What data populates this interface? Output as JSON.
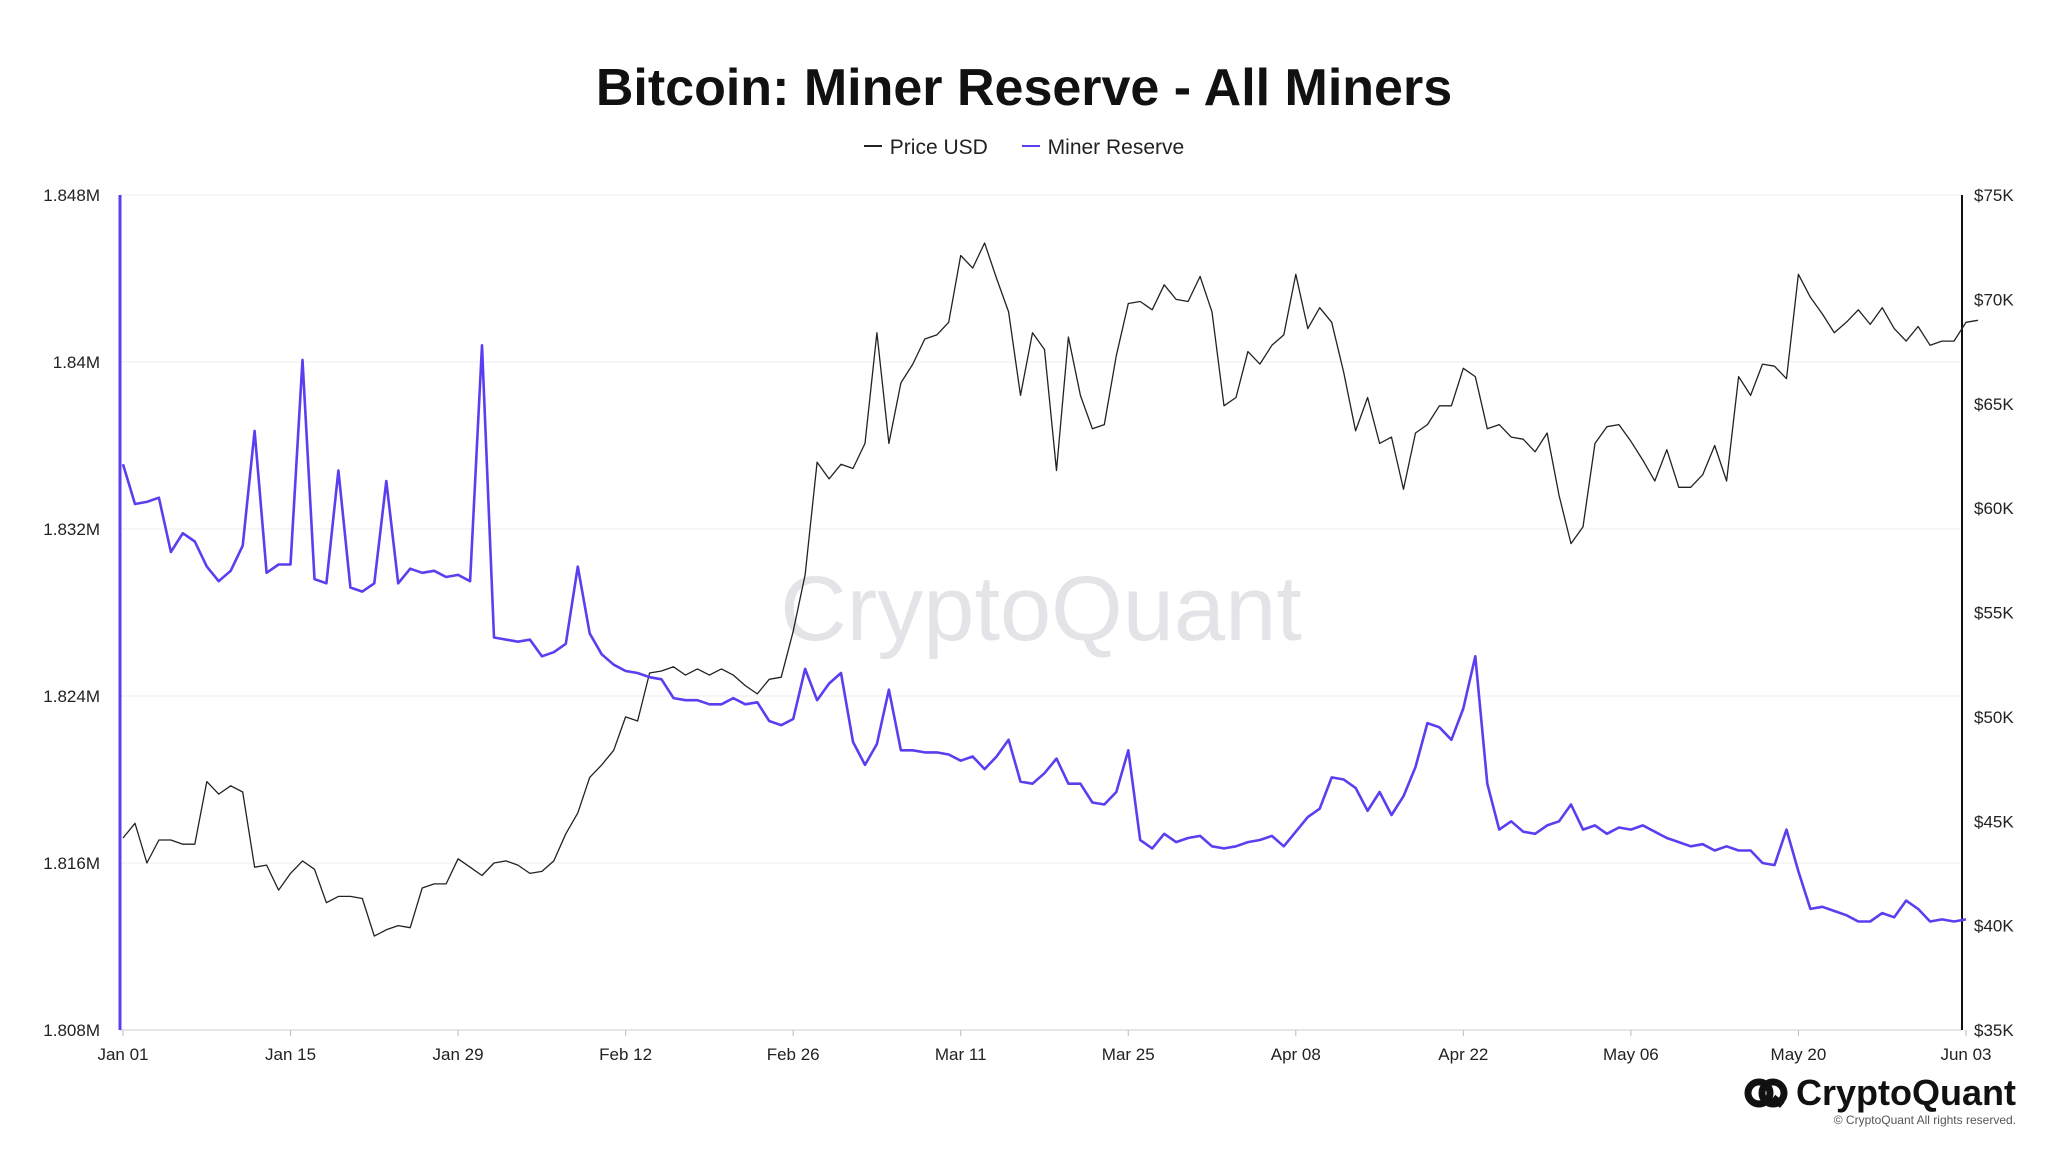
{
  "chart_data": {
    "type": "line",
    "title": "Bitcoin: Miner Reserve - All Miners",
    "legend_placement": "top-center",
    "grid": true,
    "x_axis": {
      "tick_labels": [
        "Jan 01",
        "Jan 15",
        "Jan 29",
        "Feb 12",
        "Feb 26",
        "Mar 11",
        "Mar 25",
        "Apr 08",
        "Apr 22",
        "May 06",
        "May 20",
        "Jun 03"
      ]
    },
    "y_left": {
      "ylim": [
        1808000,
        1848000
      ],
      "tick_values": [
        1808000,
        1816000,
        1824000,
        1832000,
        1840000,
        1848000
      ],
      "tick_labels": [
        "1.808M",
        "1.816M",
        "1.824M",
        "1.832M",
        "1.84M",
        "1.848M"
      ]
    },
    "y_right": {
      "ylim": [
        35000,
        75000
      ],
      "tick_values": [
        35000,
        40000,
        45000,
        50000,
        55000,
        60000,
        65000,
        70000,
        75000
      ],
      "tick_labels": [
        "$35K",
        "$40K",
        "$45K",
        "$50K",
        "$55K",
        "$60K",
        "$65K",
        "$70K",
        "$75K"
      ]
    },
    "x_start_day_offset": 0,
    "series": [
      {
        "name": "Price USD",
        "color": "#222222",
        "axis": "right",
        "values": [
          44200,
          44900,
          43000,
          44100,
          44100,
          43900,
          43900,
          46900,
          46300,
          46700,
          46400,
          42800,
          42900,
          41700,
          42500,
          43100,
          42700,
          41100,
          41400,
          41400,
          41300,
          39500,
          39800,
          40000,
          39900,
          41800,
          42000,
          42000,
          43200,
          42800,
          42400,
          43000,
          43100,
          42900,
          42500,
          42600,
          43100,
          44400,
          45400,
          47100,
          47700,
          48400,
          50000,
          49800,
          52100,
          52200,
          52400,
          52000,
          52300,
          52000,
          52300,
          52000,
          51500,
          51100,
          51800,
          51900,
          54100,
          56800,
          62200,
          61400,
          62100,
          61900,
          63100,
          68400,
          63100,
          66000,
          66900,
          68100,
          68300,
          68900,
          72100,
          71500,
          72700,
          71000,
          69400,
          65400,
          68400,
          67600,
          61800,
          68200,
          65400,
          63800,
          64000,
          67300,
          69800,
          69900,
          69500,
          70700,
          70000,
          69900,
          71100,
          69400,
          64900,
          65300,
          67500,
          66900,
          67800,
          68300,
          71200,
          68600,
          69600,
          68900,
          66500,
          63700,
          65300,
          63100,
          63400,
          60900,
          63600,
          64000,
          64900,
          64900,
          66700,
          66300,
          63800,
          64000,
          63400,
          63300,
          62700,
          63600,
          60600,
          58300,
          59100,
          63100,
          63900,
          64000,
          63200,
          62300,
          61300,
          62800,
          61000,
          61000,
          61600,
          63000,
          61300,
          66300,
          65400,
          66900,
          66800,
          66200,
          71200,
          70100,
          69300,
          68400,
          68900,
          69500,
          68800,
          69600,
          68600,
          68000,
          68700,
          67800,
          68000,
          68000,
          68900,
          69000
        ]
      },
      {
        "name": "Miner Reserve",
        "color": "#5a3ff0",
        "axis": "left",
        "values": [
          1835100,
          1833200,
          1833300,
          1833500,
          1830900,
          1831800,
          1831400,
          1830200,
          1829500,
          1830000,
          1831200,
          1836700,
          1829900,
          1830300,
          1830300,
          1840100,
          1829600,
          1829400,
          1834800,
          1829200,
          1829000,
          1829400,
          1834300,
          1829400,
          1830100,
          1829900,
          1830000,
          1829700,
          1829800,
          1829500,
          1840800,
          1826800,
          1826700,
          1826600,
          1826700,
          1825900,
          1826100,
          1826500,
          1830200,
          1827000,
          1826000,
          1825500,
          1825200,
          1825100,
          1824900,
          1824800,
          1823900,
          1823800,
          1823800,
          1823600,
          1823600,
          1823900,
          1823600,
          1823700,
          1822800,
          1822600,
          1822900,
          1825300,
          1823800,
          1824600,
          1825100,
          1821800,
          1820700,
          1821700,
          1824300,
          1821400,
          1821400,
          1821300,
          1821300,
          1821200,
          1820900,
          1821100,
          1820500,
          1821100,
          1821900,
          1819900,
          1819800,
          1820300,
          1821000,
          1819800,
          1819800,
          1818900,
          1818800,
          1819400,
          1821400,
          1817100,
          1816700,
          1817400,
          1817000,
          1817200,
          1817300,
          1816800,
          1816700,
          1816800,
          1817000,
          1817100,
          1817300,
          1816800,
          1817500,
          1818200,
          1818600,
          1820100,
          1820000,
          1819600,
          1818500,
          1819400,
          1818300,
          1819200,
          1820600,
          1822700,
          1822500,
          1821900,
          1823400,
          1825900,
          1819800,
          1817600,
          1818000,
          1817500,
          1817400,
          1817800,
          1818000,
          1818800,
          1817600,
          1817800,
          1817400,
          1817700,
          1817600,
          1817800,
          1817500,
          1817200,
          1817000,
          1816800,
          1816900,
          1816600,
          1816800,
          1816600,
          1816600,
          1816000,
          1815900,
          1817600,
          1815600,
          1813800,
          1813900,
          1813700,
          1813500,
          1813200,
          1813200,
          1813600,
          1813400,
          1814200,
          1813800,
          1813200,
          1813300,
          1813200,
          1813300
        ]
      }
    ]
  },
  "watermark": "CryptoQuant",
  "brand": {
    "name": "CryptoQuant",
    "copyright": "© CryptoQuant All rights reserved."
  }
}
